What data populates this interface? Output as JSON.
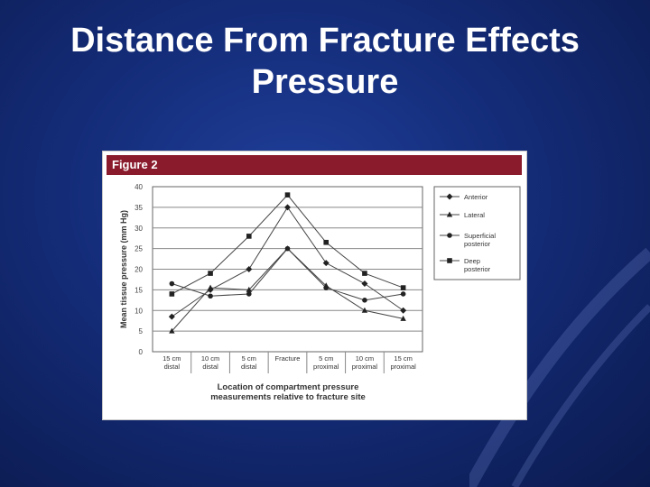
{
  "slide": {
    "title_line1": "Distance From Fracture Effects",
    "title_line2": "Pressure"
  },
  "figure": {
    "label": "Figure 2",
    "header_color": "#8a1b2c"
  },
  "chart_data": {
    "type": "line",
    "categories": [
      [
        "15 cm",
        "distal"
      ],
      [
        "10 cm",
        "distal"
      ],
      [
        "5 cm",
        "distal"
      ],
      [
        "Fracture"
      ],
      [
        "5 cm",
        "proximal"
      ],
      [
        "10 cm",
        "proximal"
      ],
      [
        "15 cm",
        "proximal"
      ]
    ],
    "ylabel": "Mean tissue pressure (mm Hg)",
    "xlabel": [
      "Location of compartment pressure",
      "measurements relative to fracture site"
    ],
    "ylim": [
      0,
      40
    ],
    "yticks": [
      0,
      5,
      10,
      15,
      20,
      25,
      30,
      35,
      40
    ],
    "grid": true,
    "legend_position": "right",
    "series": [
      {
        "name": [
          "Anterior"
        ],
        "marker": "diamond",
        "values": [
          8.5,
          15,
          20,
          35,
          21.5,
          16.5,
          10
        ]
      },
      {
        "name": [
          "Lateral"
        ],
        "marker": "triangle",
        "values": [
          5,
          15.5,
          15,
          25,
          16,
          10,
          8
        ]
      },
      {
        "name": [
          "Superficial",
          "posterior"
        ],
        "marker": "circle",
        "values": [
          16.5,
          13.5,
          14,
          25,
          15.5,
          12.5,
          14
        ]
      },
      {
        "name": [
          "Deep",
          "posterior"
        ],
        "marker": "square",
        "values": [
          14,
          19,
          28,
          38,
          26.5,
          19,
          15.5
        ]
      }
    ]
  }
}
